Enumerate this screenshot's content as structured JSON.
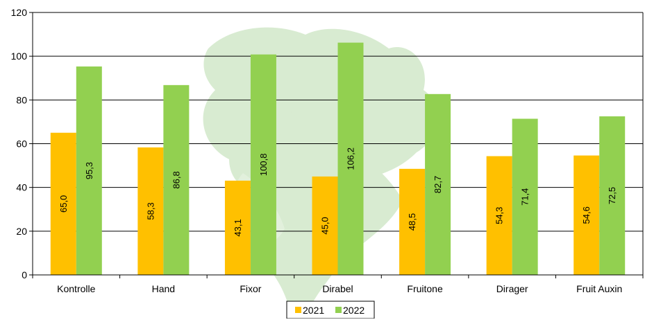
{
  "chart_data": {
    "type": "bar",
    "categories": [
      "Kontrolle",
      "Hand",
      "Fixor",
      "Dirabel",
      "Fruitone",
      "Dirager",
      "Fruit Auxin"
    ],
    "series": [
      {
        "name": "2021",
        "values": [
          65.0,
          58.3,
          43.1,
          45.0,
          48.5,
          54.3,
          54.6
        ],
        "labels": [
          "65,0",
          "58,3",
          "43,1",
          "45,0",
          "48,5",
          "54,3",
          "54,6"
        ]
      },
      {
        "name": "2022",
        "values": [
          95.3,
          86.8,
          100.8,
          106.2,
          82.7,
          71.4,
          72.5
        ],
        "labels": [
          "95,3",
          "86,8",
          "100,8",
          "106,2",
          "82,7",
          "71,4",
          "72,5"
        ]
      }
    ],
    "yticks": [
      "0",
      "20",
      "40",
      "60",
      "80",
      "100",
      "120"
    ],
    "ylim": [
      0,
      120
    ],
    "grid": true,
    "legend_position": "bottom-center",
    "data_label_orientation": "vertical",
    "colors": {
      "2021": "#FFC000",
      "2022": "#92D050",
      "watermark": "#a9d39a",
      "axis": "#000000"
    }
  }
}
